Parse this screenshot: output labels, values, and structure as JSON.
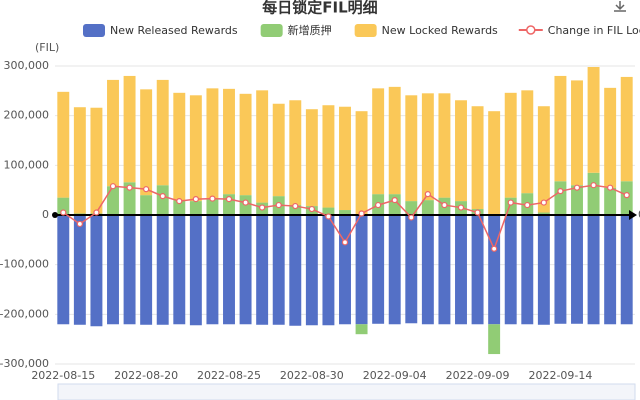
{
  "chart_data": {
    "type": "bar",
    "title": "每日锁定FIL明细",
    "y_unit": "(FIL)",
    "axis_end_label": "0",
    "categories": [
      "2022-08-15",
      null,
      null,
      null,
      null,
      "2022-08-20",
      null,
      null,
      null,
      null,
      "2022-08-25",
      null,
      null,
      null,
      null,
      "2022-08-30",
      null,
      null,
      null,
      null,
      "2022-09-04",
      null,
      null,
      null,
      null,
      "2022-09-09",
      null,
      null,
      null,
      null,
      "2022-09-14",
      null,
      null,
      null,
      null
    ],
    "ylim": [
      -300000,
      300000
    ],
    "yticks": [
      {
        "value": -300000,
        "label": "-300,000"
      },
      {
        "value": -200000,
        "label": "-200,000"
      },
      {
        "value": -100000,
        "label": "-100,000"
      },
      0,
      {
        "value": 100000,
        "label": "100,000"
      },
      {
        "value": 200000,
        "label": "200,000"
      },
      {
        "value": 300000,
        "label": "300,000"
      }
    ],
    "series": [
      {
        "name": "New Released Rewards",
        "type": "bar",
        "color": "#5470c6",
        "values": [
          -220000,
          -221000,
          -224000,
          -220000,
          -220000,
          -221000,
          -221000,
          -220000,
          -222000,
          -220000,
          -220000,
          -220000,
          -221000,
          -221000,
          -223000,
          -222000,
          -222000,
          -220000,
          -220000,
          -219000,
          -220000,
          -218000,
          -220000,
          -220000,
          -220000,
          -220000,
          -220000,
          -220000,
          -220000,
          -221000,
          -219000,
          -219000,
          -220000,
          -220000,
          -220000
        ]
      },
      {
        "name": "新增质押",
        "type": "bar",
        "color": "#91cc75",
        "values": [
          35000,
          3000,
          3000,
          58000,
          66000,
          40000,
          60000,
          30000,
          28000,
          32000,
          42000,
          40000,
          25000,
          38000,
          20000,
          18000,
          15000,
          10000,
          -20000,
          42000,
          42000,
          28000,
          30000,
          35000,
          28000,
          12000,
          -60000,
          35000,
          44000,
          5000,
          68000,
          60000,
          85000,
          55000,
          68000
        ]
      },
      {
        "name": "New Locked Rewards",
        "type": "bar",
        "color": "#fac858",
        "values": [
          213000,
          214000,
          213000,
          214000,
          214000,
          213000,
          212000,
          216000,
          213000,
          223000,
          212000,
          204000,
          226000,
          186000,
          211000,
          195000,
          206000,
          208000,
          209000,
          213000,
          216000,
          213000,
          215000,
          210000,
          203000,
          207000,
          209000,
          211000,
          207000,
          214000,
          212000,
          211000,
          213000,
          201000,
          210000
        ]
      },
      {
        "name": "Change in FIL Locked",
        "type": "line",
        "color": "#ee6666",
        "values": [
          5000,
          -18000,
          5000,
          58000,
          55000,
          52000,
          38000,
          28000,
          32000,
          33000,
          32000,
          25000,
          15000,
          20000,
          18000,
          12000,
          -3000,
          -55000,
          3000,
          20000,
          30000,
          -5000,
          42000,
          20000,
          15000,
          5000,
          -68000,
          25000,
          20000,
          25000,
          48000,
          55000,
          60000,
          55000,
          40000
        ]
      }
    ]
  }
}
